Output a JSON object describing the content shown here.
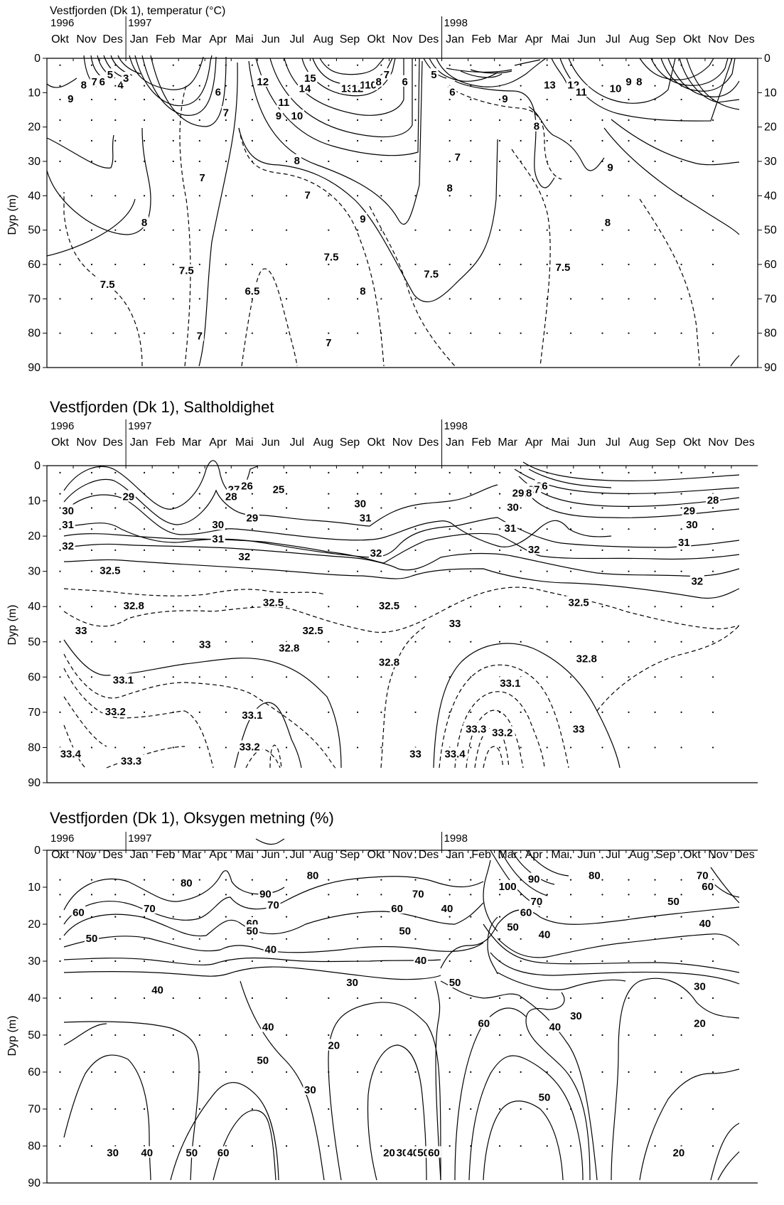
{
  "chart_data": [
    {
      "type": "contour",
      "variable": "temperature",
      "title": "Vestfjorden (Dk 1), temperatur (°C)",
      "ylabel": "Dyp (m)",
      "ylim": [
        90,
        0
      ],
      "yticks": [
        0,
        10,
        20,
        30,
        40,
        50,
        60,
        70,
        80,
        90
      ],
      "right_axis_ticks": true,
      "year_labels": [
        {
          "label": "1996",
          "month_index": 0
        },
        {
          "label": "1997",
          "month_index": 2.5
        },
        {
          "label": "1998",
          "month_index": 14.5
        }
      ],
      "months": [
        "Okt",
        "Nov",
        "Des",
        "Jan",
        "Feb",
        "Mar",
        "Apr",
        "Mai",
        "Jun",
        "Jul",
        "Aug",
        "Sep",
        "Okt",
        "Nov",
        "Des",
        "Jan",
        "Feb",
        "Mar",
        "Apr",
        "Mai",
        "Jun",
        "Jul",
        "Aug",
        "Sep",
        "Okt",
        "Nov",
        "Des"
      ],
      "sample_grid": {
        "x": [
          0.5,
          1.7,
          2.6,
          3.7,
          4.8,
          5.8,
          6.8,
          7.8,
          9.1,
          10.7,
          11.8,
          12.7,
          14.0,
          15.3,
          16.1,
          17.2,
          18.0,
          19.0,
          19.9,
          21.1,
          22.1,
          23.1,
          24.1,
          25.3
        ],
        "depths": [
          2,
          8,
          12,
          18,
          24,
          30,
          40,
          50,
          60,
          70,
          80
        ]
      },
      "contour_labels": [
        {
          "text": "9",
          "x": 0.9,
          "y": 12
        },
        {
          "text": "8",
          "x": 1.4,
          "y": 8
        },
        {
          "text": "7",
          "x": 1.8,
          "y": 7
        },
        {
          "text": "6",
          "x": 2.1,
          "y": 7
        },
        {
          "text": "5",
          "x": 2.4,
          "y": 5
        },
        {
          "text": "4",
          "x": 2.8,
          "y": 8
        },
        {
          "text": "3",
          "x": 3.0,
          "y": 6
        },
        {
          "text": "6",
          "x": 6.5,
          "y": 10
        },
        {
          "text": "7",
          "x": 6.8,
          "y": 16
        },
        {
          "text": "7",
          "x": 5.9,
          "y": 35
        },
        {
          "text": "8",
          "x": 3.7,
          "y": 48
        },
        {
          "text": "7.5",
          "x": 2.3,
          "y": 66
        },
        {
          "text": "7.5",
          "x": 5.3,
          "y": 62
        },
        {
          "text": "7",
          "x": 5.8,
          "y": 81
        },
        {
          "text": "6.5",
          "x": 7.8,
          "y": 68
        },
        {
          "text": "12",
          "x": 8.2,
          "y": 7
        },
        {
          "text": "15",
          "x": 10.0,
          "y": 6
        },
        {
          "text": "14",
          "x": 9.8,
          "y": 9
        },
        {
          "text": "13",
          "x": 11.4,
          "y": 9
        },
        {
          "text": "12",
          "x": 11.8,
          "y": 9
        },
        {
          "text": "11",
          "x": 12.1,
          "y": 8
        },
        {
          "text": "10",
          "x": 12.3,
          "y": 8
        },
        {
          "text": "8",
          "x": 12.6,
          "y": 7
        },
        {
          "text": "7",
          "x": 12.9,
          "y": 5
        },
        {
          "text": "11",
          "x": 9.0,
          "y": 13
        },
        {
          "text": "9",
          "x": 8.8,
          "y": 17
        },
        {
          "text": "10",
          "x": 9.5,
          "y": 17
        },
        {
          "text": "8",
          "x": 9.5,
          "y": 30
        },
        {
          "text": "7",
          "x": 9.9,
          "y": 40
        },
        {
          "text": "7.5",
          "x": 10.8,
          "y": 58
        },
        {
          "text": "8",
          "x": 12.0,
          "y": 68
        },
        {
          "text": "9",
          "x": 12.0,
          "y": 47
        },
        {
          "text": "7",
          "x": 10.7,
          "y": 83
        },
        {
          "text": "6",
          "x": 13.6,
          "y": 7
        },
        {
          "text": "5",
          "x": 14.7,
          "y": 5
        },
        {
          "text": "6",
          "x": 15.4,
          "y": 10
        },
        {
          "text": "7",
          "x": 15.6,
          "y": 29
        },
        {
          "text": "8",
          "x": 15.3,
          "y": 38
        },
        {
          "text": "7.5",
          "x": 14.6,
          "y": 63
        },
        {
          "text": "9",
          "x": 17.4,
          "y": 12
        },
        {
          "text": "8",
          "x": 18.6,
          "y": 20
        },
        {
          "text": "13",
          "x": 19.1,
          "y": 8
        },
        {
          "text": "12",
          "x": 20.0,
          "y": 8
        },
        {
          "text": "11",
          "x": 20.3,
          "y": 10
        },
        {
          "text": "10",
          "x": 21.6,
          "y": 9
        },
        {
          "text": "9",
          "x": 22.1,
          "y": 7
        },
        {
          "text": "8",
          "x": 22.5,
          "y": 7
        },
        {
          "text": "9",
          "x": 21.4,
          "y": 32
        },
        {
          "text": "8",
          "x": 21.3,
          "y": 48
        },
        {
          "text": "7.5",
          "x": 19.6,
          "y": 61
        }
      ]
    },
    {
      "type": "contour",
      "variable": "salinity",
      "title": "Vestfjorden (Dk 1), Saltholdighet",
      "ylabel": "Dyp (m)",
      "ylim": [
        90,
        0
      ],
      "yticks": [
        0,
        10,
        20,
        30,
        40,
        50,
        60,
        70,
        80,
        90
      ],
      "right_axis_ticks": false,
      "year_labels": [
        {
          "label": "1996",
          "month_index": 0
        },
        {
          "label": "1997",
          "month_index": 2.5
        },
        {
          "label": "1998",
          "month_index": 14.5
        }
      ],
      "months": [
        "Okt",
        "Nov",
        "Des",
        "Jan",
        "Feb",
        "Mar",
        "Apr",
        "Mai",
        "Jun",
        "Jul",
        "Aug",
        "Sep",
        "Okt",
        "Nov",
        "Des",
        "Jan",
        "Feb",
        "Mar",
        "Apr",
        "Mai",
        "Jun",
        "Jul",
        "Aug",
        "Sep",
        "Okt",
        "Nov",
        "Des"
      ],
      "sample_grid": {
        "x": [
          0.5,
          1.7,
          2.6,
          3.7,
          4.8,
          5.8,
          6.8,
          7.8,
          9.1,
          10.7,
          11.8,
          12.7,
          14.0,
          15.3,
          16.1,
          17.2,
          18.0,
          19.0,
          19.9,
          21.1,
          22.1,
          23.1,
          24.1,
          25.3
        ],
        "depths": [
          2,
          8,
          12,
          18,
          24,
          30,
          40,
          50,
          60,
          70,
          80
        ]
      },
      "contour_labels": [
        {
          "text": "29",
          "x": 3.1,
          "y": 9
        },
        {
          "text": "30",
          "x": 0.8,
          "y": 13
        },
        {
          "text": "31",
          "x": 0.8,
          "y": 17
        },
        {
          "text": "32",
          "x": 0.8,
          "y": 23
        },
        {
          "text": "32.5",
          "x": 2.4,
          "y": 30
        },
        {
          "text": "32.8",
          "x": 3.3,
          "y": 40
        },
        {
          "text": "33",
          "x": 1.3,
          "y": 47
        },
        {
          "text": "33.1",
          "x": 2.9,
          "y": 61
        },
        {
          "text": "33.2",
          "x": 2.6,
          "y": 70
        },
        {
          "text": "33.4",
          "x": 0.9,
          "y": 82
        },
        {
          "text": "33.3",
          "x": 3.2,
          "y": 84
        },
        {
          "text": "27",
          "x": 7.1,
          "y": 7
        },
        {
          "text": "26",
          "x": 7.6,
          "y": 6
        },
        {
          "text": "25",
          "x": 8.8,
          "y": 7
        },
        {
          "text": "28",
          "x": 7.0,
          "y": 9
        },
        {
          "text": "30",
          "x": 6.5,
          "y": 17
        },
        {
          "text": "29",
          "x": 7.8,
          "y": 15
        },
        {
          "text": "31",
          "x": 6.5,
          "y": 21
        },
        {
          "text": "32",
          "x": 7.5,
          "y": 26
        },
        {
          "text": "32.5",
          "x": 8.6,
          "y": 39
        },
        {
          "text": "32.5",
          "x": 10.1,
          "y": 47
        },
        {
          "text": "32.8",
          "x": 9.2,
          "y": 52
        },
        {
          "text": "33",
          "x": 6.0,
          "y": 51
        },
        {
          "text": "33.1",
          "x": 7.8,
          "y": 71
        },
        {
          "text": "33.2",
          "x": 7.7,
          "y": 80
        },
        {
          "text": "30",
          "x": 11.9,
          "y": 11
        },
        {
          "text": "31",
          "x": 12.1,
          "y": 15
        },
        {
          "text": "32",
          "x": 12.5,
          "y": 25
        },
        {
          "text": "32.5",
          "x": 13.0,
          "y": 40
        },
        {
          "text": "32.8",
          "x": 13.0,
          "y": 56
        },
        {
          "text": "33",
          "x": 14.0,
          "y": 82
        },
        {
          "text": "33",
          "x": 15.5,
          "y": 45
        },
        {
          "text": "33.4",
          "x": 15.5,
          "y": 82
        },
        {
          "text": "33.3",
          "x": 16.3,
          "y": 75
        },
        {
          "text": "33.2",
          "x": 17.3,
          "y": 76
        },
        {
          "text": "33.1",
          "x": 17.6,
          "y": 62
        },
        {
          "text": "33",
          "x": 20.2,
          "y": 75
        },
        {
          "text": "32.8",
          "x": 20.5,
          "y": 55
        },
        {
          "text": "32.5",
          "x": 20.2,
          "y": 39
        },
        {
          "text": "26",
          "x": 18.8,
          "y": 6
        },
        {
          "text": "27",
          "x": 18.5,
          "y": 7
        },
        {
          "text": "28",
          "x": 18.2,
          "y": 8
        },
        {
          "text": "29",
          "x": 17.9,
          "y": 8
        },
        {
          "text": "30",
          "x": 17.7,
          "y": 12
        },
        {
          "text": "31",
          "x": 17.6,
          "y": 18
        },
        {
          "text": "32",
          "x": 18.5,
          "y": 24
        },
        {
          "text": "28",
          "x": 25.3,
          "y": 10
        },
        {
          "text": "29",
          "x": 24.4,
          "y": 13
        },
        {
          "text": "30",
          "x": 24.5,
          "y": 17
        },
        {
          "text": "31",
          "x": 24.2,
          "y": 22
        },
        {
          "text": "32",
          "x": 24.7,
          "y": 33
        }
      ]
    },
    {
      "type": "contour",
      "variable": "oxygen_saturation",
      "title": "Vestfjorden (Dk 1), Oksygen metning (%)",
      "ylabel": "Dyp (m)",
      "ylim": [
        90,
        0
      ],
      "yticks": [
        0,
        10,
        20,
        30,
        40,
        50,
        60,
        70,
        80,
        90
      ],
      "right_axis_ticks": false,
      "year_labels": [
        {
          "label": "1996",
          "month_index": 0
        },
        {
          "label": "1997",
          "month_index": 2.5
        },
        {
          "label": "1998",
          "month_index": 14.5
        }
      ],
      "months": [
        "Okt",
        "Nov",
        "Des",
        "Jan",
        "Feb",
        "Mar",
        "Apr",
        "Mai",
        "Jun",
        "Jul",
        "Aug",
        "Sep",
        "Okt",
        "Nov",
        "Des",
        "Jan",
        "Feb",
        "Mar",
        "Apr",
        "Mai",
        "Jun",
        "Jul",
        "Aug",
        "Sep",
        "Okt",
        "Nov",
        "Des"
      ],
      "sample_grid": {
        "x": [
          0.5,
          1.7,
          2.6,
          3.7,
          4.8,
          5.8,
          6.8,
          7.8,
          9.1,
          10.7,
          11.8,
          12.7,
          14.0,
          15.3,
          16.1,
          17.2,
          18.0,
          19.0,
          19.9,
          21.1,
          22.1,
          23.1,
          24.1,
          25.3
        ],
        "depths": [
          2,
          8,
          12,
          18,
          24,
          30,
          40,
          50,
          60,
          70,
          80
        ]
      },
      "contour_labels": [
        {
          "text": "80",
          "x": 5.3,
          "y": 9
        },
        {
          "text": "70",
          "x": 3.9,
          "y": 16
        },
        {
          "text": "60",
          "x": 1.2,
          "y": 17
        },
        {
          "text": "50",
          "x": 1.7,
          "y": 24
        },
        {
          "text": "40",
          "x": 4.2,
          "y": 38
        },
        {
          "text": "30",
          "x": 2.5,
          "y": 82
        },
        {
          "text": "40",
          "x": 3.8,
          "y": 82
        },
        {
          "text": "50",
          "x": 5.5,
          "y": 82
        },
        {
          "text": "60",
          "x": 6.7,
          "y": 82
        },
        {
          "text": "90",
          "x": 8.3,
          "y": 12
        },
        {
          "text": "80",
          "x": 10.1,
          "y": 7
        },
        {
          "text": "70",
          "x": 8.6,
          "y": 15
        },
        {
          "text": "60",
          "x": 7.8,
          "y": 20
        },
        {
          "text": "50",
          "x": 7.8,
          "y": 22
        },
        {
          "text": "40",
          "x": 8.5,
          "y": 27
        },
        {
          "text": "40",
          "x": 8.4,
          "y": 48
        },
        {
          "text": "50",
          "x": 8.2,
          "y": 57
        },
        {
          "text": "30",
          "x": 10.0,
          "y": 65
        },
        {
          "text": "30",
          "x": 11.6,
          "y": 36
        },
        {
          "text": "20",
          "x": 10.9,
          "y": 53
        },
        {
          "text": "20",
          "x": 13.0,
          "y": 82
        },
        {
          "text": "30",
          "x": 13.5,
          "y": 82
        },
        {
          "text": "40",
          "x": 13.9,
          "y": 82
        },
        {
          "text": "50",
          "x": 14.3,
          "y": 82
        },
        {
          "text": "60",
          "x": 14.7,
          "y": 82
        },
        {
          "text": "70",
          "x": 14.1,
          "y": 12
        },
        {
          "text": "60",
          "x": 13.3,
          "y": 16
        },
        {
          "text": "50",
          "x": 13.6,
          "y": 22
        },
        {
          "text": "40",
          "x": 14.2,
          "y": 30
        },
        {
          "text": "40",
          "x": 15.2,
          "y": 16
        },
        {
          "text": "50",
          "x": 15.5,
          "y": 36
        },
        {
          "text": "60",
          "x": 16.6,
          "y": 47
        },
        {
          "text": "100",
          "x": 17.5,
          "y": 10
        },
        {
          "text": "90",
          "x": 18.5,
          "y": 8
        },
        {
          "text": "80",
          "x": 20.8,
          "y": 7
        },
        {
          "text": "70",
          "x": 18.6,
          "y": 14
        },
        {
          "text": "60",
          "x": 18.2,
          "y": 17
        },
        {
          "text": "50",
          "x": 17.7,
          "y": 21
        },
        {
          "text": "40",
          "x": 18.9,
          "y": 23
        },
        {
          "text": "40",
          "x": 19.3,
          "y": 48
        },
        {
          "text": "30",
          "x": 20.1,
          "y": 45
        },
        {
          "text": "50",
          "x": 18.9,
          "y": 67
        },
        {
          "text": "70",
          "x": 24.9,
          "y": 7
        },
        {
          "text": "60",
          "x": 25.1,
          "y": 10
        },
        {
          "text": "50",
          "x": 23.8,
          "y": 14
        },
        {
          "text": "40",
          "x": 25.0,
          "y": 20
        },
        {
          "text": "30",
          "x": 24.8,
          "y": 37
        },
        {
          "text": "20",
          "x": 24.8,
          "y": 47
        },
        {
          "text": "20",
          "x": 24.0,
          "y": 82
        }
      ]
    }
  ]
}
